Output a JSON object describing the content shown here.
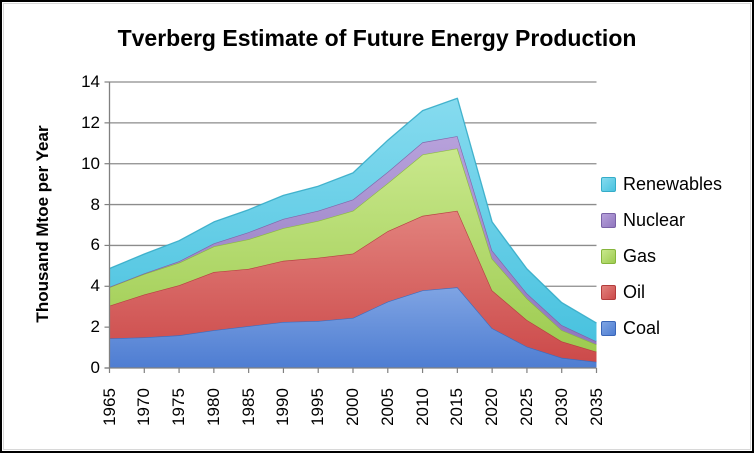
{
  "chart_data": {
    "type": "area",
    "stacked": true,
    "title": "Tverberg Estimate of Future Energy Production",
    "ylabel": "Thousand Mtoe per Year",
    "xlabel": "",
    "ylim": [
      0,
      14
    ],
    "yticks": [
      0,
      2,
      4,
      6,
      8,
      10,
      12,
      14
    ],
    "grid": true,
    "legend_position": "right",
    "background": "#FFFFFF",
    "gridline_color": "#8C8C8C",
    "axis_color": "#808080",
    "text_color": "#000000",
    "categories": [
      "1965",
      "1970",
      "1975",
      "1980",
      "1985",
      "1990",
      "1995",
      "2000",
      "2005",
      "2010",
      "2015",
      "2020",
      "2025",
      "2030",
      "2035"
    ],
    "series": [
      {
        "name": "Coal",
        "color": "#4E7DD2",
        "color_light": "#7FA4E3",
        "edge": "#3A66B8",
        "values": [
          1.45,
          1.5,
          1.6,
          1.85,
          2.05,
          2.25,
          2.3,
          2.45,
          3.25,
          3.8,
          3.95,
          1.95,
          1.05,
          0.5,
          0.3
        ]
      },
      {
        "name": "Oil",
        "color": "#CC4A4A",
        "color_light": "#E2827D",
        "edge": "#B23C3C",
        "values": [
          1.6,
          2.1,
          2.45,
          2.85,
          2.8,
          3.0,
          3.1,
          3.15,
          3.45,
          3.65,
          3.75,
          1.85,
          1.3,
          0.8,
          0.5
        ]
      },
      {
        "name": "Gas",
        "color": "#9DCB50",
        "color_light": "#C9E88C",
        "edge": "#86B53C",
        "values": [
          0.9,
          1.0,
          1.1,
          1.25,
          1.45,
          1.6,
          1.8,
          2.1,
          2.35,
          3.0,
          3.05,
          1.55,
          1.05,
          0.55,
          0.35
        ]
      },
      {
        "name": "Nuclear",
        "color": "#9077BE",
        "color_light": "#B7A1DB",
        "edge": "#7A62A6",
        "values": [
          0.02,
          0.03,
          0.08,
          0.15,
          0.35,
          0.45,
          0.5,
          0.55,
          0.55,
          0.6,
          0.6,
          0.4,
          0.25,
          0.25,
          0.15
        ]
      },
      {
        "name": "Renewables",
        "color": "#49C2DF",
        "color_light": "#86DBEF",
        "edge": "#35ACC8",
        "values": [
          0.9,
          0.95,
          1.0,
          1.05,
          1.1,
          1.15,
          1.2,
          1.3,
          1.55,
          1.55,
          1.85,
          1.4,
          1.2,
          1.1,
          0.9
        ]
      }
    ]
  }
}
